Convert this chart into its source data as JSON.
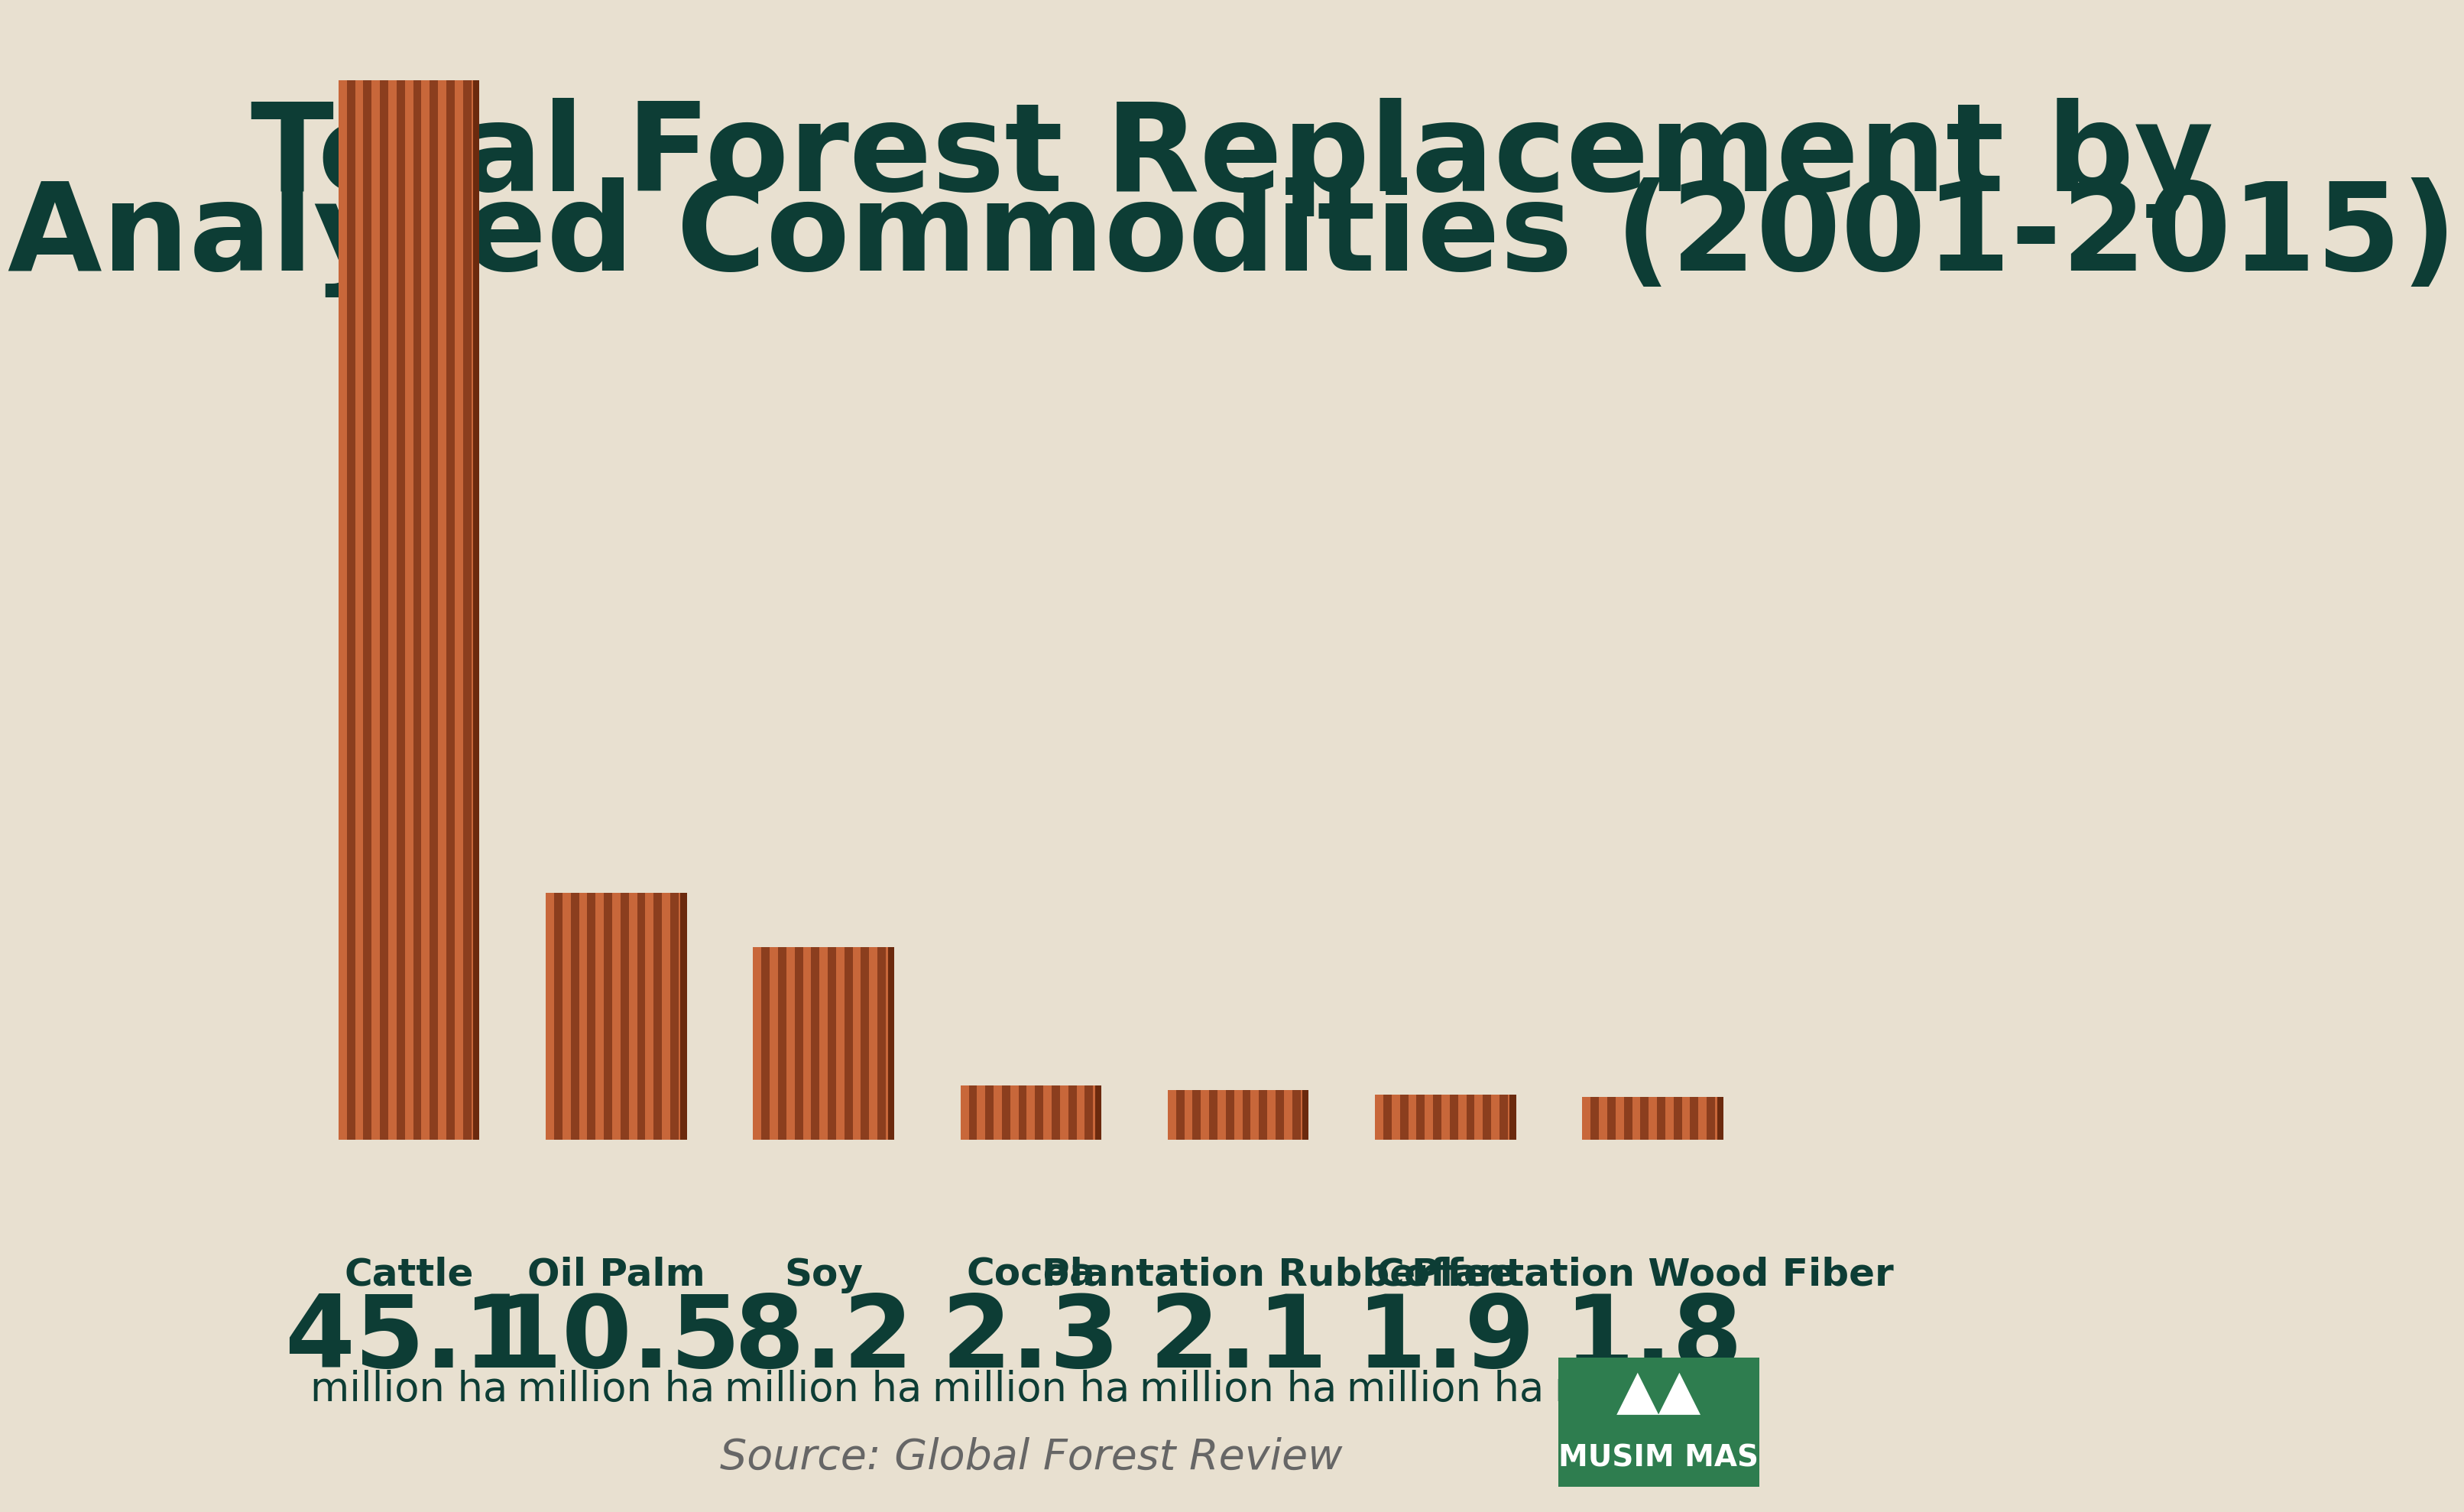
{
  "title_line1": "Total Forest Replacement by",
  "title_line2": "Analyzed Commodities (2001-2015)",
  "title_color": "#0d3d35",
  "background_color": "#e8e0d0",
  "categories": [
    "Cattle",
    "Oil Palm",
    "Soy",
    "Cocoa",
    "Plantation Rubber",
    "Coffee",
    "Plantation Wood Fiber"
  ],
  "values": [
    45.1,
    10.5,
    8.2,
    2.3,
    2.1,
    1.9,
    1.8
  ],
  "source_text": "Source: Global Forest Review",
  "label_color": "#0d3d35",
  "value_color": "#0d3d35",
  "unit_text": "million ha",
  "bar_stripe_light": "#c8673a",
  "bar_stripe_dark": "#8b3e1e",
  "bar_base": "#a85228",
  "logo_bg": "#2e7d4f",
  "logo_text": "#ffffff"
}
